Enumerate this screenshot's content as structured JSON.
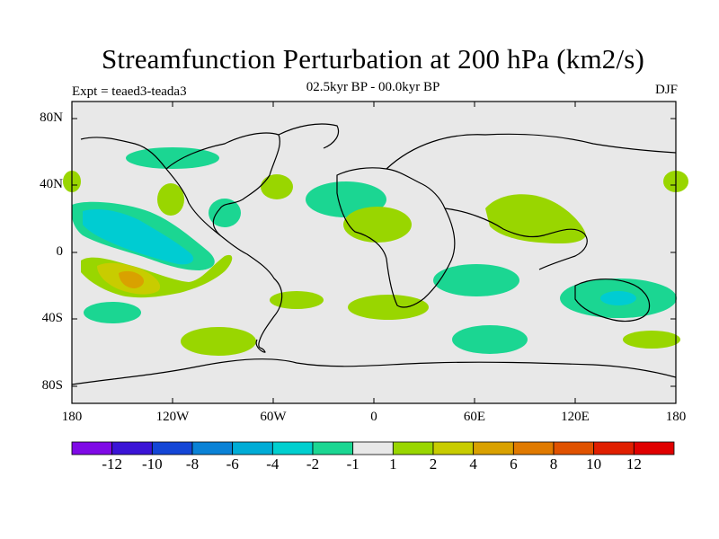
{
  "title": "Streamfunction Perturbation at 200 hPa (km2/s)",
  "subtitle": "02.5kyr BP - 00.0kyr BP",
  "expt_label": "Expt = teaed3-teada3",
  "season": "DJF",
  "colors": {
    "land_ocean_bg": "#e8e8e8",
    "pos_1_2": "#99d600",
    "pos_2_4": "#c8cc00",
    "pos_4_6": "#d9a100",
    "neg_m1_m2": "#1bd692",
    "neg_m2_m4": "#00ccd2",
    "coast": "#000000"
  },
  "axes": {
    "y_ticks": [
      "80N",
      "40N",
      "0",
      "40S",
      "80S"
    ],
    "x_ticks": [
      "180",
      "120W",
      "60W",
      "0",
      "60E",
      "120E",
      "180"
    ]
  },
  "colorbar": {
    "levels": [
      "-12",
      "-10",
      "-8",
      "-6",
      "-4",
      "-2",
      "-1",
      "1",
      "2",
      "4",
      "6",
      "8",
      "10",
      "12"
    ],
    "colors": [
      "#7f0ae6",
      "#3b14d6",
      "#1446d6",
      "#0a82d6",
      "#00acd6",
      "#00cfcf",
      "#1bd692",
      "#e8e8e8",
      "#99d600",
      "#c8cc00",
      "#d9a100",
      "#e07a00",
      "#e05200",
      "#e01f00",
      "#e00000"
    ]
  },
  "chart_data": {
    "type": "contour_map",
    "title": "Streamfunction Perturbation at 200 hPa (km2/s)",
    "subtitle": "02.5kyr BP - 00.0kyr BP",
    "experiment": "Expt = teaed3-teada3",
    "season": "DJF",
    "lon_range": [
      -180,
      180
    ],
    "lat_range": [
      -90,
      90
    ],
    "contour_levels": [
      -12,
      -10,
      -8,
      -6,
      -4,
      -2,
      -1,
      1,
      2,
      4,
      6,
      8,
      10,
      12
    ],
    "features": [
      {
        "lon": -158,
        "lat": -18,
        "value": 5,
        "label": "positive max, central South Pacific"
      },
      {
        "lon": -145,
        "lat": 25,
        "value": -3,
        "label": "negative band, subtropical North Pacific"
      },
      {
        "lon": 30,
        "lat": 18,
        "value": 1.5,
        "label": "positive, North Africa"
      },
      {
        "lon": 100,
        "lat": 20,
        "value": 1.5,
        "label": "positive, South/East Asia"
      },
      {
        "lon": 140,
        "lat": -28,
        "value": -2,
        "label": "negative, Australia"
      }
    ]
  }
}
